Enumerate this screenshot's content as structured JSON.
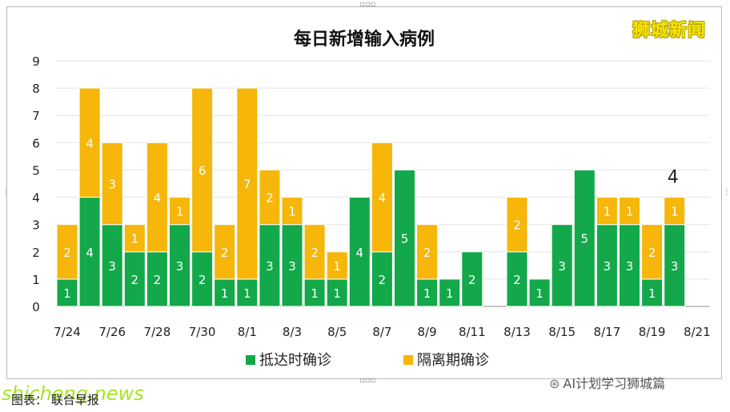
{
  "chart_data": {
    "type": "bar",
    "stacked": true,
    "title": "每日新增输入病例",
    "categories": [
      "7/24",
      "7/25",
      "7/26",
      "7/27",
      "7/28",
      "7/29",
      "7/30",
      "7/31",
      "8/1",
      "8/2",
      "8/3",
      "8/4",
      "8/5",
      "8/6",
      "8/7",
      "8/8",
      "8/9",
      "8/10",
      "8/11",
      "8/12",
      "8/13",
      "8/14",
      "8/15",
      "8/16",
      "8/17",
      "8/18",
      "8/19",
      "8/20",
      "8/21"
    ],
    "tick_labels": [
      "7/24",
      "7/26",
      "7/28",
      "7/30",
      "8/1",
      "8/3",
      "8/5",
      "8/7",
      "8/9",
      "8/11",
      "8/13",
      "8/15",
      "8/17",
      "8/19",
      "8/21"
    ],
    "series": [
      {
        "name": "抵达时确诊",
        "color": "#13a849",
        "values": [
          1,
          4,
          3,
          2,
          2,
          3,
          2,
          1,
          1,
          3,
          3,
          1,
          1,
          4,
          2,
          5,
          1,
          1,
          2,
          0,
          2,
          1,
          3,
          5,
          3,
          3,
          1,
          3,
          0
        ]
      },
      {
        "name": "隔离期确诊",
        "color": "#f6b60a",
        "values": [
          2,
          4,
          3,
          1,
          4,
          1,
          6,
          2,
          7,
          2,
          1,
          2,
          1,
          0,
          4,
          0,
          2,
          0,
          0,
          0,
          2,
          0,
          0,
          0,
          1,
          1,
          2,
          1,
          0
        ]
      }
    ],
    "ylim": [
      0,
      9
    ],
    "yticks": [
      0,
      1,
      2,
      3,
      4,
      5,
      6,
      7,
      8,
      9
    ],
    "grid": true,
    "legend_position": "bottom",
    "annotation": "4"
  },
  "watermarks": {
    "corner": "狮城新闻",
    "site": "shicheng.news",
    "wechat": "AI计划学习狮城篇"
  },
  "caption": "图表：  联合早报"
}
